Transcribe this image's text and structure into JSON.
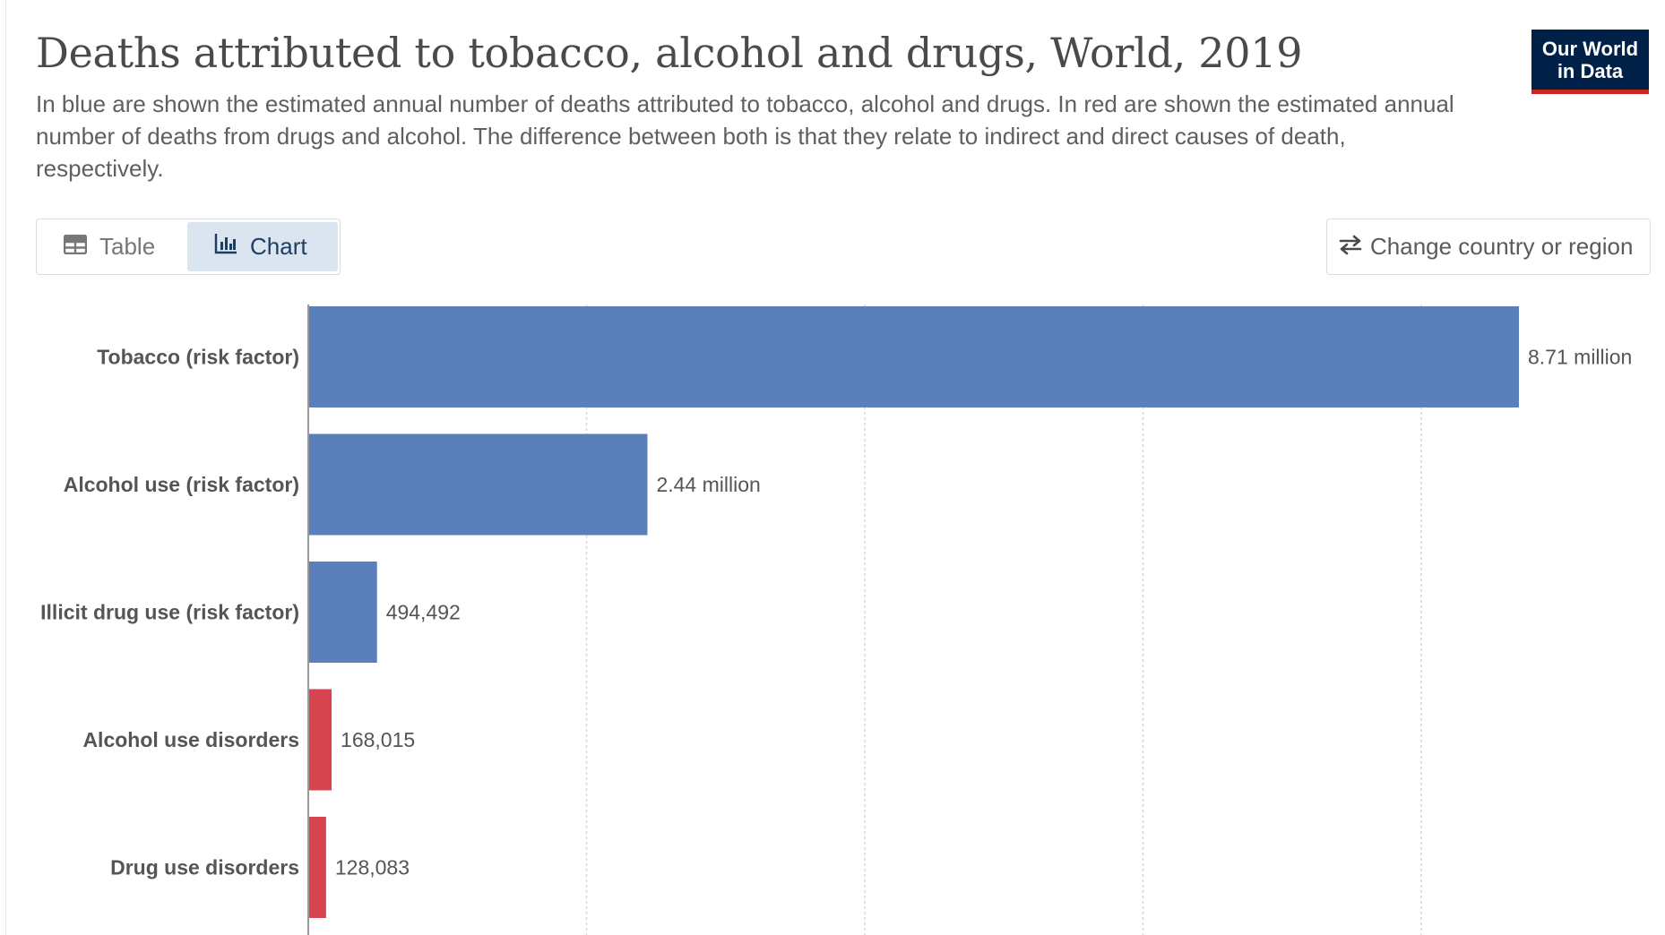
{
  "header": {
    "title": "Deaths attributed to tobacco, alcohol and drugs, World, 2019",
    "subtitle": "In blue are shown the estimated annual number of deaths attributed to tobacco, alcohol and drugs. In red are shown the estimated annual number of deaths from drugs and alcohol. The difference between both is that they relate to indirect and direct causes of death, respectively.",
    "logo_line1": "Our World",
    "logo_line2": "in Data"
  },
  "controls": {
    "table_label": "Table",
    "chart_label": "Chart",
    "change_region_label": "Change country or region",
    "table_icon": "table-icon",
    "chart_icon": "bar-chart-icon",
    "swap_icon": "swap-arrows-icon"
  },
  "colors": {
    "blue": "#5b7fba",
    "red": "#d6454f",
    "logo_bg": "#002147",
    "logo_accent": "#ce261e"
  },
  "chart_data": {
    "type": "bar",
    "orientation": "horizontal",
    "categories": [
      "Tobacco (risk factor)",
      "Alcohol use (risk factor)",
      "Illicit drug use (risk factor)",
      "Alcohol use disorders",
      "Drug use disorders"
    ],
    "values": [
      8710000,
      2440000,
      494492,
      168015,
      128083
    ],
    "value_labels": [
      "8.71 million",
      "2.44 million",
      "494,492",
      "168,015",
      "128,083"
    ],
    "bar_colors": [
      "blue",
      "blue",
      "blue",
      "red",
      "red"
    ],
    "xlim": [
      0,
      8710000
    ],
    "grid": true
  }
}
